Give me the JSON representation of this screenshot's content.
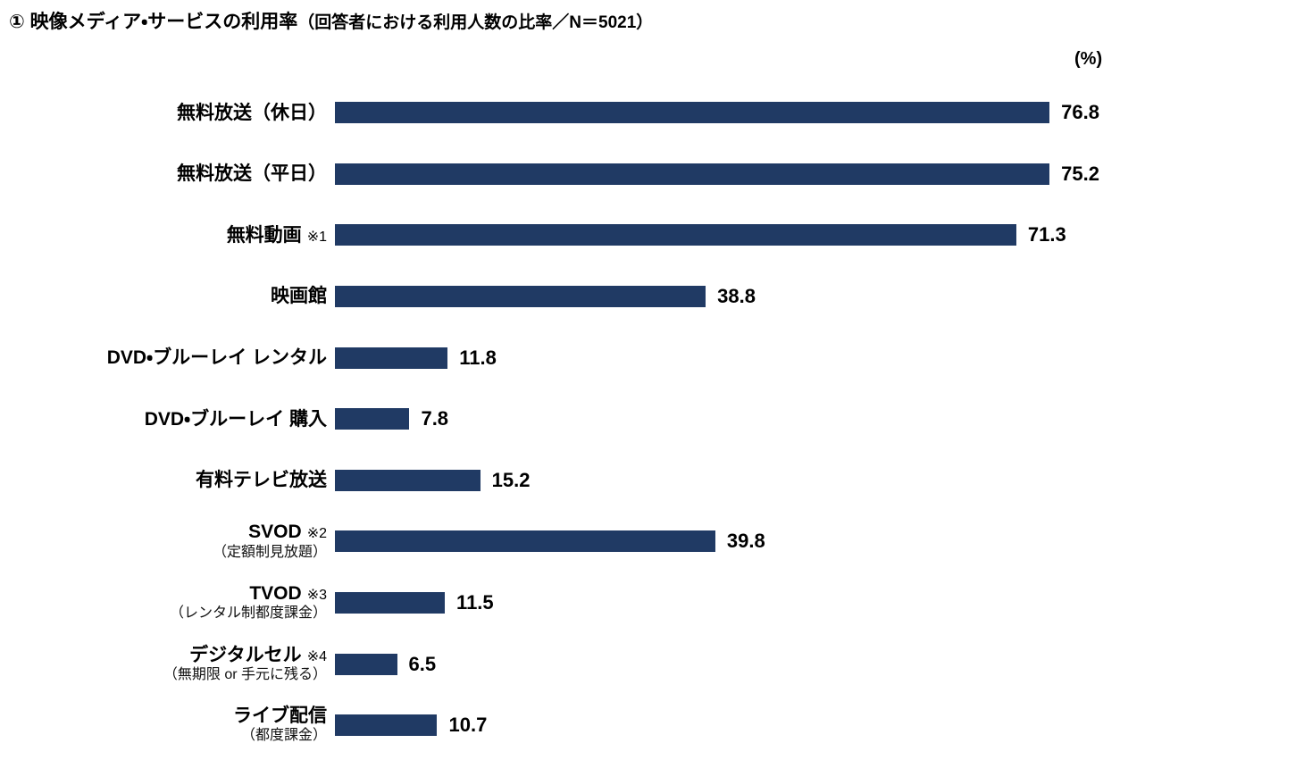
{
  "header": {
    "title_main": "① 映像メディア・サービスの利用率",
    "title_sub": "（回答者における利用人数の比率／N＝5021）"
  },
  "colors": {
    "bar": "#203a64",
    "text": "#000000",
    "background": "#ffffff"
  },
  "chart_data": {
    "type": "bar",
    "orientation": "horizontal",
    "title": "① 映像メディア・サービスの利用率（回答者における利用人数の比率／N＝5021）",
    "unit_label": "(%)",
    "sample_size": 5021,
    "xlim": [
      0,
      80
    ],
    "grid": false,
    "legend": false,
    "categories": [
      "無料放送（休日）",
      "無料放送（平日）",
      "無料動画",
      "映画館",
      "DVD・ブルーレイ レンタル",
      "DVD・ブルーレイ 購入",
      "有料テレビ放送",
      "SVOD",
      "TVOD",
      "デジタルセル",
      "ライブ配信"
    ],
    "values": [
      76.8,
      75.2,
      71.3,
      38.8,
      11.8,
      7.8,
      15.2,
      39.8,
      11.5,
      6.5,
      10.7
    ],
    "rows": [
      {
        "label": "無料放送（休日）",
        "note": "",
        "sub": "",
        "value": 76.8
      },
      {
        "label": "無料放送（平日）",
        "note": "",
        "sub": "",
        "value": 75.2
      },
      {
        "label": "無料動画",
        "note": "※1",
        "sub": "",
        "value": 71.3
      },
      {
        "label": "映画館",
        "note": "",
        "sub": "",
        "value": 38.8
      },
      {
        "label": "DVD・ブルーレイ レンタル",
        "note": "",
        "sub": "",
        "value": 11.8
      },
      {
        "label": "DVD・ブルーレイ 購入",
        "note": "",
        "sub": "",
        "value": 7.8
      },
      {
        "label": "有料テレビ放送",
        "note": "",
        "sub": "",
        "value": 15.2
      },
      {
        "label": "SVOD",
        "note": "※2",
        "sub": "（定額制見放題）",
        "value": 39.8
      },
      {
        "label": "TVOD",
        "note": "※3",
        "sub": "（レンタル制都度課金）",
        "value": 11.5
      },
      {
        "label": "デジタルセル",
        "note": "※4",
        "sub": "（無期限 or 手元に残る）",
        "value": 6.5
      },
      {
        "label": "ライブ配信",
        "note": "",
        "sub": "（都度課金）",
        "value": 10.7
      }
    ]
  }
}
